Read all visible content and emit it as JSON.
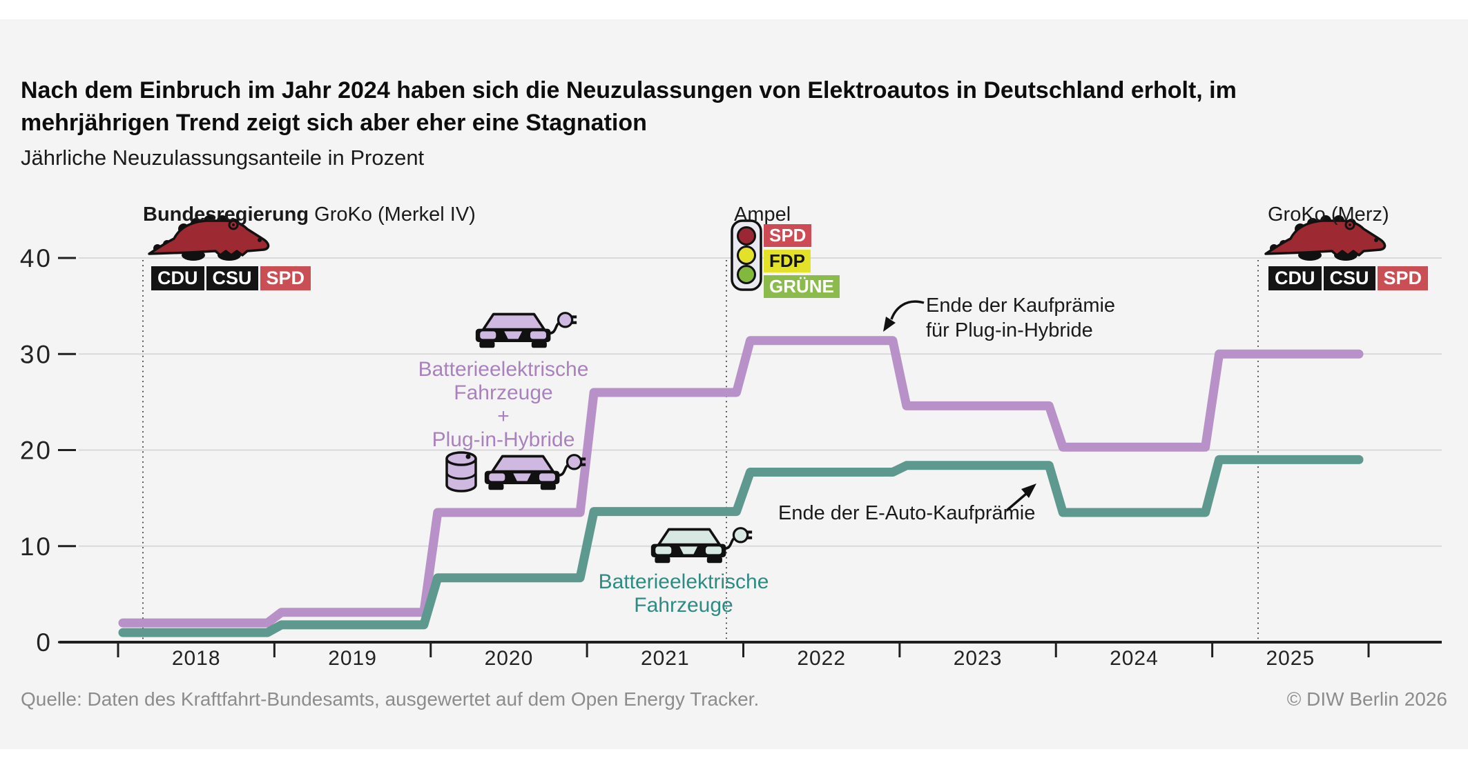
{
  "header": {
    "title_line1": "Nach dem Einbruch im Jahr 2024 haben sich die Neuzulassungen von Elektroautos in Deutschland erholt, im",
    "title_line2": "mehrjährigen Trend zeigt sich aber eher eine Stagnation",
    "subtitle": "Jährliche Neuzulassungsanteile in Prozent"
  },
  "governments": [
    {
      "prefix": "Bundesregierung",
      "name": "GroKo (Merkel IV)",
      "icon": "crocodile-icon",
      "parties": [
        {
          "label": "CDU",
          "bg": "#141414",
          "fg": "#ffffff"
        },
        {
          "label": "CSU",
          "bg": "#141414",
          "fg": "#ffffff"
        },
        {
          "label": "SPD",
          "bg": "#c94f55",
          "fg": "#ffffff"
        }
      ]
    },
    {
      "name": "Ampel",
      "icon": "traffic-light-icon",
      "parties": [
        {
          "label": "SPD",
          "bg": "#cc4b55",
          "fg": "#ffffff"
        },
        {
          "label": "FDP",
          "bg": "#e3e228",
          "fg": "#141414"
        },
        {
          "label": "GRÜNE",
          "bg": "#8bbb4a",
          "fg": "#ffffff"
        }
      ]
    },
    {
      "name": "GroKo (Merz)",
      "icon": "crocodile-icon",
      "parties": [
        {
          "label": "CDU",
          "bg": "#141414",
          "fg": "#ffffff"
        },
        {
          "label": "CSU",
          "bg": "#141414",
          "fg": "#ffffff"
        },
        {
          "label": "SPD",
          "bg": "#c94f55",
          "fg": "#ffffff"
        }
      ]
    }
  ],
  "series_labels": {
    "combined": {
      "line1": "Batterieelektrische",
      "line2": "Fahrzeuge",
      "line3": "+",
      "line4": "Plug-in-Hybride",
      "color": "#a982bd"
    },
    "bev": {
      "line1": "Batterieelektrische",
      "line2": "Fahrzeuge",
      "color": "#2e8b83"
    }
  },
  "annotations": {
    "phev_premium_end": {
      "line1": "Ende der Kaufprämie",
      "line2": "für Plug-in-Hybride"
    },
    "bev_premium_end": {
      "line1": "Ende der E-Auto-Kaufprämie"
    }
  },
  "footer": {
    "source": "Quelle: Daten des Kraftfahrt-Bundesamts, ausgewertet auf dem Open Energy Tracker.",
    "copyright": "© DIW Berlin 2026"
  },
  "colors": {
    "background_panel": "#f4f4f4",
    "gridline": "#d9d9d9",
    "axis": "#1f1f1f",
    "dotted_line": "#4a4a4a",
    "crocodile_red": "#9d2a32",
    "traffic_red": "#9a2733",
    "traffic_yellow": "#e3e228",
    "traffic_green": "#82b83c"
  },
  "chart_data": {
    "type": "line",
    "step": true,
    "title": "Nach dem Einbruch im Jahr 2024 haben sich die Neuzulassungen von Elektroautos in Deutschland erholt, im mehrjährigen Trend zeigt sich aber eher eine Stagnation",
    "subtitle": "Jährliche Neuzulassungsanteile in Prozent",
    "categories": [
      "2018",
      "2019",
      "2020",
      "2021",
      "2022",
      "2023",
      "2024",
      "2025"
    ],
    "series": [
      {
        "name": "Batterieelektrische Fahrzeuge + Plug-in-Hybride",
        "color": "#b791c7",
        "values": [
          2.0,
          3.1,
          13.5,
          26.0,
          31.4,
          24.6,
          20.3,
          30.0
        ]
      },
      {
        "name": "Batterieelektrische Fahrzeuge",
        "color": "#5d998f",
        "values": [
          1.0,
          1.8,
          6.7,
          13.6,
          17.7,
          18.4,
          13.5,
          19.0
        ]
      }
    ],
    "ylim": [
      0,
      40
    ],
    "yticks": [
      0,
      10,
      20,
      30,
      40
    ],
    "xlabel": "",
    "ylabel": "Prozent",
    "grid": "horizontal",
    "legend_position": "inline-labels",
    "annotations": [
      "Ende der Kaufprämie für Plug-in-Hybride",
      "Ende der E-Auto-Kaufprämie"
    ],
    "government_labels": [
      "Bundesregierung GroKo (Merkel IV)",
      "Ampel",
      "GroKo (Merz)"
    ]
  }
}
